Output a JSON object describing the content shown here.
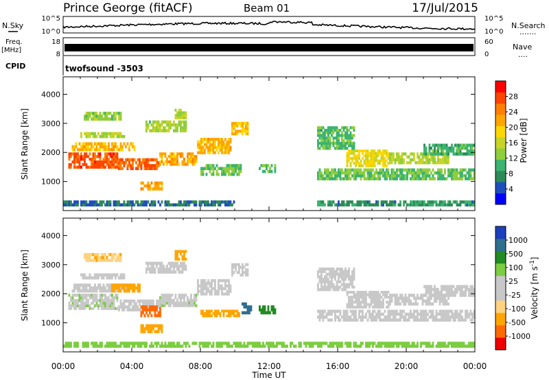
{
  "header": {
    "station": "Prince George (fitACF)",
    "beam": "Beam 01",
    "date": "17/Jul/2015"
  },
  "noise_panel": {
    "left_label": "N.Sky",
    "right_label": "N.Search",
    "right_dots": ".......",
    "left_ticks": [
      "10^5",
      "10^0"
    ],
    "right_ticks": [
      "10^5",
      "10^0"
    ]
  },
  "freq_panel": {
    "left_label_1": "Freq.",
    "left_label_2": "[MHz]",
    "right_label": "Nave",
    "right_dots": "....",
    "left_ticks": [
      "18",
      "8"
    ],
    "right_ticks": [
      "60",
      "0"
    ]
  },
  "cpid": {
    "label": "CPID",
    "program": "twofsound  -3503"
  },
  "colors": {
    "power": [
      "#0000ff",
      "#1f4fbf",
      "#2e8b57",
      "#3cb371",
      "#8fce3c",
      "#c8d428",
      "#ffd700",
      "#ffa500",
      "#ff7f00",
      "#ff4500",
      "#ff0000"
    ],
    "velocity": [
      "#ee0000",
      "#ff6a00",
      "#ffa500",
      "#ffd27f",
      "#c8c8c8",
      "#c8c8c8",
      "#7ccd42",
      "#228b22",
      "#2e6f8e",
      "#1d3fbb"
    ]
  },
  "chart_data": [
    {
      "type": "heatmap",
      "panel": "power",
      "ylabel": "Slant Range [km]",
      "yticks": [
        "4000",
        "3000",
        "2000",
        "1000"
      ],
      "ylim": [
        0,
        4600
      ],
      "xlim": [
        0,
        24
      ],
      "colorbar_label": "Power [dB]",
      "colorbar_ticks": [
        "28",
        "24",
        "20",
        "16",
        "12",
        "8",
        "4"
      ],
      "clim": [
        0,
        32
      ],
      "bands": [
        {
          "t0": 0.3,
          "t1": 3.2,
          "r0": 1450,
          "r1": 2000,
          "level": 27
        },
        {
          "t0": 3.2,
          "t1": 5.6,
          "r0": 1400,
          "r1": 1800,
          "level": 26
        },
        {
          "t0": 5.6,
          "t1": 7.8,
          "r0": 1550,
          "r1": 2000,
          "level": 22
        },
        {
          "t0": 7.8,
          "t1": 9.8,
          "r0": 1950,
          "r1": 2500,
          "level": 21
        },
        {
          "t0": 9.8,
          "t1": 10.8,
          "r0": 2600,
          "r1": 3050,
          "level": 20
        },
        {
          "t0": 0.5,
          "t1": 4.2,
          "r0": 2050,
          "r1": 2350,
          "level": 21
        },
        {
          "t0": 1.0,
          "t1": 3.6,
          "r0": 2500,
          "r1": 2700,
          "level": 15
        },
        {
          "t0": 1.2,
          "t1": 3.4,
          "r0": 3100,
          "r1": 3400,
          "level": 13
        },
        {
          "t0": 4.8,
          "t1": 7.2,
          "r0": 2700,
          "r1": 3100,
          "level": 14
        },
        {
          "t0": 6.5,
          "t1": 7.2,
          "r0": 3150,
          "r1": 3500,
          "level": 14
        },
        {
          "t0": 4.5,
          "t1": 5.8,
          "r0": 700,
          "r1": 1000,
          "level": 22
        },
        {
          "t0": 8.0,
          "t1": 10.4,
          "r0": 1200,
          "r1": 1600,
          "level": 12
        },
        {
          "t0": 11.4,
          "t1": 12.4,
          "r0": 1300,
          "r1": 1600,
          "level": 11
        },
        {
          "t0": 14.8,
          "t1": 24.0,
          "r0": 1050,
          "r1": 1450,
          "level": 12
        },
        {
          "t0": 16.5,
          "t1": 19.0,
          "r0": 1500,
          "r1": 2100,
          "level": 18
        },
        {
          "t0": 19.0,
          "t1": 22.5,
          "r0": 1600,
          "r1": 2000,
          "level": 15
        },
        {
          "t0": 14.8,
          "t1": 17.0,
          "r0": 2100,
          "r1": 2900,
          "level": 11
        },
        {
          "t0": 21.0,
          "t1": 24.0,
          "r0": 1900,
          "r1": 2300,
          "level": 10
        },
        {
          "t0": 14.8,
          "t1": 24.0,
          "r0": 150,
          "r1": 350,
          "level": 8
        },
        {
          "t0": 0.0,
          "t1": 10.0,
          "r0": 150,
          "r1": 350,
          "level": 6
        }
      ]
    },
    {
      "type": "heatmap",
      "panel": "velocity",
      "ylabel": "Slant Range [km]",
      "yticks": [
        "4000",
        "3000",
        "2000",
        "1000"
      ],
      "ylim": [
        0,
        4600
      ],
      "xlim": [
        0,
        24
      ],
      "xlabel": "Time UT",
      "xticks": [
        "00:00",
        "04:00",
        "08:00",
        "12:00",
        "16:00",
        "20:00",
        "00:00"
      ],
      "colorbar_label": "Velocity [m s^-1]",
      "colorbar_ticks": [
        "1000",
        "500",
        "100",
        "25",
        "-25",
        "-100",
        "-500",
        "-1000"
      ],
      "bands": [
        {
          "t0": 0.3,
          "t1": 3.2,
          "r0": 1450,
          "r1": 2000,
          "v": 10
        },
        {
          "t0": 3.2,
          "t1": 5.6,
          "r0": 1400,
          "r1": 1800,
          "v": 0
        },
        {
          "t0": 4.5,
          "t1": 5.7,
          "r0": 1200,
          "r1": 1600,
          "v": -600
        },
        {
          "t0": 5.6,
          "t1": 7.8,
          "r0": 1550,
          "r1": 2000,
          "v": 5
        },
        {
          "t0": 7.8,
          "t1": 9.8,
          "r0": 1950,
          "r1": 2500,
          "v": 0
        },
        {
          "t0": 9.8,
          "t1": 10.8,
          "r0": 2600,
          "r1": 3050,
          "v": 0
        },
        {
          "t0": 0.5,
          "t1": 4.2,
          "r0": 2050,
          "r1": 2350,
          "v": 0
        },
        {
          "t0": 2.8,
          "t1": 4.5,
          "r0": 2050,
          "r1": 2350,
          "v": -200
        },
        {
          "t0": 1.0,
          "t1": 3.6,
          "r0": 2500,
          "r1": 2700,
          "v": 0
        },
        {
          "t0": 1.2,
          "t1": 3.4,
          "r0": 3100,
          "r1": 3400,
          "v": -80
        },
        {
          "t0": 4.8,
          "t1": 7.2,
          "r0": 2700,
          "r1": 3100,
          "v": 0
        },
        {
          "t0": 6.5,
          "t1": 7.2,
          "r0": 3150,
          "r1": 3500,
          "v": -150
        },
        {
          "t0": 4.5,
          "t1": 5.8,
          "r0": 650,
          "r1": 950,
          "v": -400
        },
        {
          "t0": 8.0,
          "t1": 10.4,
          "r0": 1200,
          "r1": 1450,
          "v": -150
        },
        {
          "t0": 10.4,
          "t1": 11.0,
          "r0": 1300,
          "r1": 1700,
          "v": 900
        },
        {
          "t0": 11.4,
          "t1": 12.4,
          "r0": 1300,
          "r1": 1600,
          "v": 400
        },
        {
          "t0": 14.8,
          "t1": 24.0,
          "r0": 1050,
          "r1": 1450,
          "v": 0
        },
        {
          "t0": 16.5,
          "t1": 19.0,
          "r0": 1500,
          "r1": 2100,
          "v": 0
        },
        {
          "t0": 19.0,
          "t1": 22.5,
          "r0": 1600,
          "r1": 2000,
          "v": 0
        },
        {
          "t0": 14.8,
          "t1": 17.0,
          "r0": 2100,
          "r1": 2900,
          "v": 0
        },
        {
          "t0": 21.0,
          "t1": 24.0,
          "r0": 1900,
          "r1": 2300,
          "v": 0
        },
        {
          "t0": 0.0,
          "t1": 24.0,
          "r0": 150,
          "r1": 350,
          "v": 60
        }
      ]
    }
  ]
}
